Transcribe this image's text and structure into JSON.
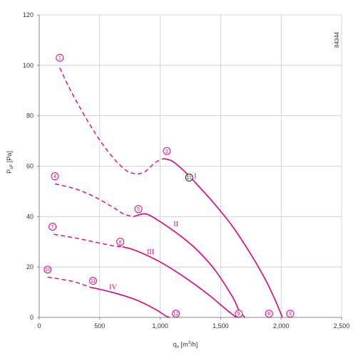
{
  "chart_data": {
    "type": "line",
    "xlabel_main": "q",
    "xlabel_sub": "v",
    "xlabel_unit_pre": " [m",
    "xlabel_unit_sup": "3",
    "xlabel_unit_post": "/h]",
    "ylabel_main": "P",
    "ylabel_sub": "sF",
    "ylabel_unit": " [Pa]",
    "xlim": [
      0,
      2500
    ],
    "ylim": [
      0,
      120
    ],
    "x_ticks": [
      0,
      500,
      1000,
      1500,
      2000,
      2500
    ],
    "x_tick_labels": [
      "0",
      "500",
      "1,000",
      "1,500",
      "2,000",
      "2,500"
    ],
    "y_ticks": [
      0,
      20,
      40,
      60,
      80,
      100,
      120
    ],
    "y_tick_labels": [
      "0",
      "20",
      "40",
      "60",
      "80",
      "100",
      "120"
    ],
    "grid": true,
    "id_label": "84344",
    "colors": {
      "curve": "#e6007e",
      "grid": "#cccccc",
      "axis": "#888888"
    },
    "series": [
      {
        "name": "I",
        "dashed": [
          [
            170,
            99
          ],
          [
            260,
            90
          ],
          [
            400,
            78
          ],
          [
            550,
            67
          ],
          [
            700,
            59
          ],
          [
            800,
            57
          ],
          [
            880,
            58
          ],
          [
            960,
            61.5
          ],
          [
            1030,
            63
          ]
        ],
        "solid": [
          [
            1030,
            63
          ],
          [
            1100,
            62
          ],
          [
            1200,
            58
          ],
          [
            1300,
            53
          ],
          [
            1450,
            45
          ],
          [
            1600,
            36
          ],
          [
            1750,
            25
          ],
          [
            1870,
            15
          ],
          [
            1950,
            7
          ],
          [
            2010,
            0
          ]
        ],
        "label_pos": [
          1290,
          56
        ]
      },
      {
        "name": "II",
        "dashed": [
          [
            130,
            53
          ],
          [
            300,
            51
          ],
          [
            450,
            48
          ],
          [
            600,
            44
          ],
          [
            700,
            41
          ],
          [
            780,
            40
          ]
        ],
        "solid": [
          [
            780,
            40
          ],
          [
            850,
            41
          ],
          [
            900,
            40.8
          ],
          [
            1000,
            38
          ],
          [
            1150,
            33
          ],
          [
            1300,
            27
          ],
          [
            1450,
            19
          ],
          [
            1600,
            8
          ],
          [
            1650,
            3
          ],
          [
            1700,
            0
          ]
        ],
        "label_pos": [
          1130,
          37
        ]
      },
      {
        "name": "III",
        "dashed": [
          [
            120,
            33
          ],
          [
            300,
            31.5
          ],
          [
            450,
            30
          ],
          [
            600,
            28.5
          ],
          [
            690,
            28
          ]
        ],
        "solid": [
          [
            690,
            28
          ],
          [
            800,
            26.5
          ],
          [
            1000,
            22
          ],
          [
            1200,
            16
          ],
          [
            1400,
            9
          ],
          [
            1550,
            3
          ],
          [
            1630,
            0
          ]
        ],
        "label_pos": [
          920,
          26
        ]
      },
      {
        "name": "IV",
        "dashed": [
          [
            70,
            16
          ],
          [
            200,
            15
          ],
          [
            300,
            14
          ],
          [
            420,
            12
          ]
        ],
        "solid": [
          [
            420,
            12
          ],
          [
            600,
            10
          ],
          [
            800,
            7
          ],
          [
            950,
            3.5
          ],
          [
            1050,
            0.5
          ],
          [
            1080,
            0
          ]
        ],
        "label_pos": [
          610,
          12
        ]
      }
    ],
    "markers": [
      {
        "label": "1",
        "x": 170,
        "y": 103
      },
      {
        "label": "2",
        "x": 1055,
        "y": 66
      },
      {
        "label": "3",
        "x": 2075,
        "y": 1.5
      },
      {
        "label": "4",
        "x": 130,
        "y": 56
      },
      {
        "label": "5",
        "x": 820,
        "y": 43
      },
      {
        "label": "6",
        "x": 1900,
        "y": 1.5
      },
      {
        "label": "7",
        "x": 110,
        "y": 36
      },
      {
        "label": "8",
        "x": 670,
        "y": 30
      },
      {
        "label": "9",
        "x": 1650,
        "y": 1.5
      },
      {
        "label": "10",
        "x": 70,
        "y": 19
      },
      {
        "label": "11",
        "x": 445,
        "y": 14.5
      },
      {
        "label": "12",
        "x": 1130,
        "y": 1.5
      }
    ],
    "operating_points": [
      {
        "label": "11",
        "x": 1240,
        "y": 55.5
      }
    ]
  }
}
